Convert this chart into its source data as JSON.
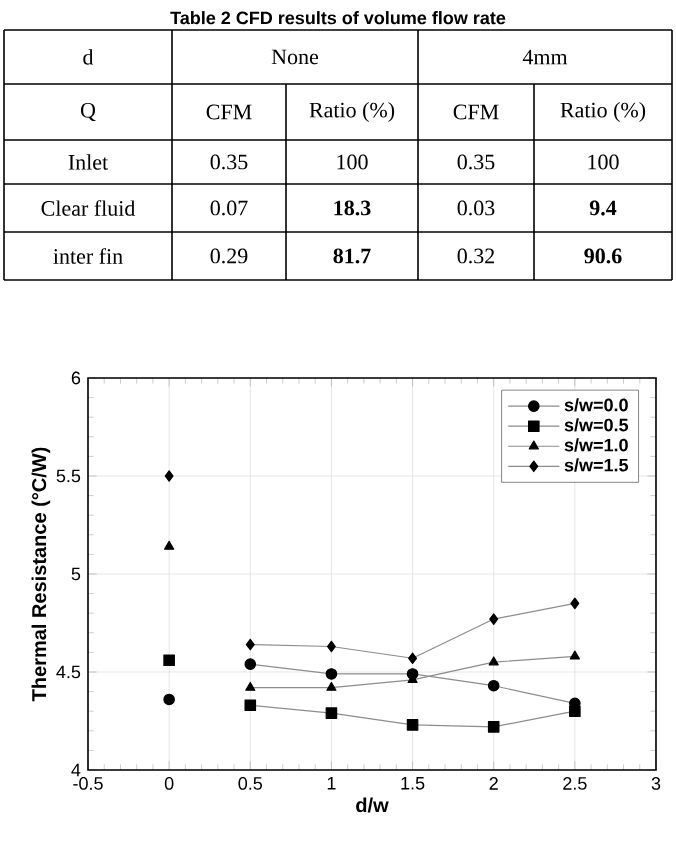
{
  "chart_data": [
    {
      "type": "other",
      "title": "Table 2 CFD results of volume flow rate",
      "annotations": [
        "d",
        "None",
        "4mm",
        "Q",
        "CFM",
        "Ratio (%)",
        "CFM",
        "Ratio (%)",
        "Inlet",
        "0.35",
        "100",
        "0.35",
        "100",
        "Clear fluid",
        "0.07",
        "**18.3**",
        "0.03",
        "**9.4**",
        "inter fin",
        "0.29",
        "**81.7**",
        "0.32",
        "**90.6**"
      ]
    },
    {
      "type": "line",
      "xlabel": "d/w",
      "ylabel": "Thermal Resistance (°C/W)",
      "xlim": [
        -0.5,
        3
      ],
      "ylim": [
        4,
        6
      ],
      "xticks": [
        -0.5,
        0,
        0.5,
        1,
        1.5,
        2,
        2.5,
        3
      ],
      "yticks": [
        4,
        4.5,
        5,
        5.5,
        6
      ],
      "grid": true,
      "legend": "top right",
      "series": [
        {
          "name": "s/w=0.0",
          "color": "#000000",
          "marker": "circle",
          "x": [
            0,
            0.25,
            0.5,
            1,
            1.5,
            2,
            2.5
          ],
          "values": [
            4.36,
            null,
            4.54,
            4.49,
            4.49,
            4.43,
            4.34
          ]
        },
        {
          "name": "s/w=0.5",
          "color": "#000000",
          "marker": "square",
          "x": [
            0,
            0.25,
            0.5,
            1,
            1.5,
            2,
            2.5
          ],
          "values": [
            4.56,
            null,
            4.33,
            4.29,
            4.23,
            4.22,
            4.3
          ]
        },
        {
          "name": "s/w=1.0",
          "color": "#000000",
          "marker": "triangle",
          "x": [
            0,
            0.25,
            0.5,
            1,
            1.5,
            2,
            2.5
          ],
          "values": [
            5.14,
            null,
            4.42,
            4.42,
            4.46,
            4.55,
            4.58
          ]
        },
        {
          "name": "s/w=1.5",
          "color": "#000000",
          "marker": "diamond",
          "x": [
            0,
            0.25,
            0.5,
            1,
            1.5,
            2,
            2.5
          ],
          "values": [
            5.5,
            null,
            4.64,
            4.63,
            4.57,
            4.77,
            4.85
          ]
        }
      ]
    }
  ]
}
